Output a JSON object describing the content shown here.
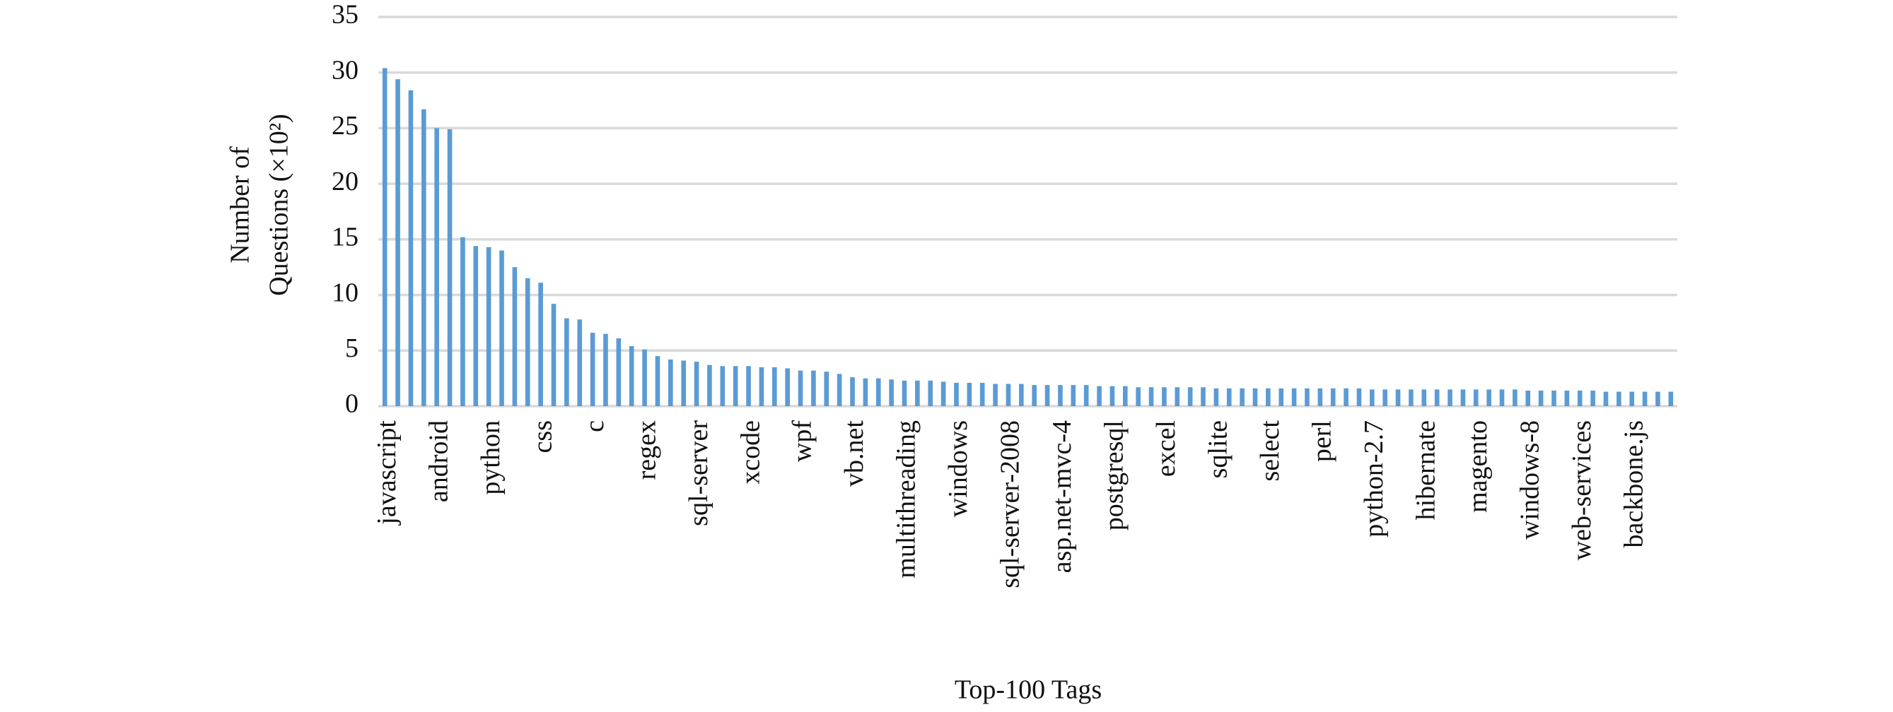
{
  "chart_data": {
    "type": "bar",
    "categories": [
      "javascript",
      null,
      null,
      null,
      "android",
      null,
      null,
      null,
      "python",
      null,
      null,
      null,
      "css",
      null,
      null,
      null,
      "c",
      null,
      null,
      null,
      "regex",
      null,
      null,
      null,
      "sql-server",
      null,
      null,
      null,
      "xcode",
      null,
      null,
      null,
      "wpf",
      null,
      null,
      null,
      "vb.net",
      null,
      null,
      null,
      "multithreading",
      null,
      null,
      null,
      "windows",
      null,
      null,
      null,
      "sql-server-2008",
      null,
      null,
      null,
      "asp.net-mvc-4",
      null,
      null,
      null,
      "postgresql",
      null,
      null,
      null,
      "excel",
      null,
      null,
      null,
      "sqlite",
      null,
      null,
      null,
      "select",
      null,
      null,
      null,
      "perl",
      null,
      null,
      null,
      "python-2.7",
      null,
      null,
      null,
      "hibernate",
      null,
      null,
      null,
      "magento",
      null,
      null,
      null,
      "windows-8",
      null,
      null,
      null,
      "web-services",
      null,
      null,
      null,
      "backbone.js",
      null,
      null,
      null
    ],
    "values": [
      30.4,
      29.4,
      28.4,
      26.7,
      25.0,
      24.9,
      15.2,
      14.4,
      14.3,
      14.0,
      12.5,
      11.5,
      11.1,
      9.2,
      7.9,
      7.8,
      6.6,
      6.5,
      6.1,
      5.4,
      5.1,
      4.5,
      4.2,
      4.1,
      4.0,
      3.7,
      3.6,
      3.6,
      3.6,
      3.5,
      3.5,
      3.4,
      3.2,
      3.2,
      3.1,
      2.9,
      2.6,
      2.5,
      2.5,
      2.4,
      2.3,
      2.3,
      2.3,
      2.2,
      2.1,
      2.1,
      2.1,
      2.0,
      2.0,
      2.0,
      1.9,
      1.9,
      1.9,
      1.9,
      1.9,
      1.8,
      1.8,
      1.8,
      1.7,
      1.7,
      1.7,
      1.7,
      1.7,
      1.7,
      1.6,
      1.6,
      1.6,
      1.6,
      1.6,
      1.6,
      1.6,
      1.6,
      1.6,
      1.6,
      1.6,
      1.6,
      1.5,
      1.5,
      1.5,
      1.5,
      1.5,
      1.5,
      1.5,
      1.5,
      1.5,
      1.5,
      1.5,
      1.5,
      1.4,
      1.4,
      1.4,
      1.4,
      1.4,
      1.4,
      1.3,
      1.3,
      1.3,
      1.3,
      1.3,
      1.3
    ],
    "color": "#5b9bd5",
    "ylim": [
      0,
      35
    ],
    "yticks": [
      0,
      5,
      10,
      15,
      20,
      25,
      30,
      35
    ],
    "grid": true,
    "xlabel": "Top-100 Tags",
    "ylabel": [
      "Number of",
      "Questions (×10²)"
    ]
  }
}
